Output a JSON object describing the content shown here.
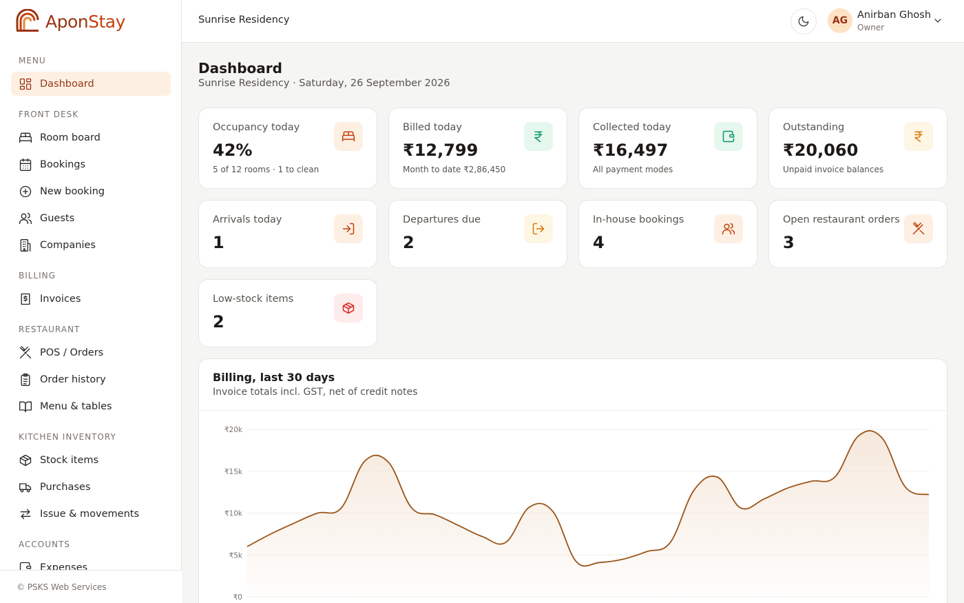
{
  "brand": {
    "part1": "Apon",
    "part2": "Stay"
  },
  "sidebar": {
    "sections": [
      {
        "label": "MENU",
        "items": [
          {
            "label": "Dashboard",
            "icon": "dashboard-icon",
            "active": true
          }
        ]
      },
      {
        "label": "FRONT DESK",
        "items": [
          {
            "label": "Room board",
            "icon": "bed-icon"
          },
          {
            "label": "Bookings",
            "icon": "calendar-icon"
          },
          {
            "label": "New booking",
            "icon": "plus-circle-icon"
          },
          {
            "label": "Guests",
            "icon": "users-icon"
          },
          {
            "label": "Companies",
            "icon": "building-icon"
          }
        ]
      },
      {
        "label": "BILLING",
        "items": [
          {
            "label": "Invoices",
            "icon": "invoice-icon"
          }
        ]
      },
      {
        "label": "RESTAURANT",
        "items": [
          {
            "label": "POS / Orders",
            "icon": "utensils-icon"
          },
          {
            "label": "Order history",
            "icon": "clipboard-icon"
          },
          {
            "label": "Menu & tables",
            "icon": "book-icon"
          }
        ]
      },
      {
        "label": "KITCHEN INVENTORY",
        "items": [
          {
            "label": "Stock items",
            "icon": "package-icon"
          },
          {
            "label": "Purchases",
            "icon": "truck-icon"
          },
          {
            "label": "Issue & movements",
            "icon": "arrows-icon"
          }
        ]
      },
      {
        "label": "ACCOUNTS",
        "items": [
          {
            "label": "Expenses",
            "icon": "wallet-icon"
          }
        ]
      }
    ],
    "footer": "© PSKS Web Services"
  },
  "header": {
    "property": "Sunrise Residency",
    "user": {
      "initials": "AG",
      "name": "Anirban Ghosh",
      "role": "Owner"
    }
  },
  "page": {
    "title": "Dashboard",
    "subtitle": "Sunrise Residency · Saturday, 26 September 2026"
  },
  "stats": [
    {
      "label": "Occupancy today",
      "value": "42%",
      "note": "5 of 12 rooms · 1 to clean",
      "icon": "bed-icon",
      "bg": "#fdf0e3",
      "fg": "#c2410c"
    },
    {
      "label": "Billed today",
      "value": "₹12,799",
      "note": "Month to date ₹2,86,450",
      "icon": "rupee-icon",
      "bg": "#e6f7ee",
      "fg": "#059669"
    },
    {
      "label": "Collected today",
      "value": "₹16,497",
      "note": "All payment modes",
      "icon": "wallet-icon",
      "bg": "#e6f7ee",
      "fg": "#059669"
    },
    {
      "label": "Outstanding",
      "value": "₹20,060",
      "note": "Unpaid invoice balances",
      "icon": "rupee-icon",
      "bg": "#fef6e4",
      "fg": "#d97706"
    },
    {
      "label": "Arrivals today",
      "value": "1",
      "note": "",
      "icon": "login-icon",
      "bg": "#fdf0e3",
      "fg": "#c2410c"
    },
    {
      "label": "Departures due",
      "value": "2",
      "note": "",
      "icon": "logout-icon",
      "bg": "#fef6e4",
      "fg": "#d97706"
    },
    {
      "label": "In-house bookings",
      "value": "4",
      "note": "",
      "icon": "users-icon",
      "bg": "#fdf0e3",
      "fg": "#c2410c"
    },
    {
      "label": "Open restaurant orders",
      "value": "3",
      "note": "",
      "icon": "utensils-icon",
      "bg": "#fdf0e3",
      "fg": "#c2410c"
    },
    {
      "label": "Low-stock items",
      "value": "2",
      "note": "",
      "icon": "package-icon",
      "bg": "#fdecec",
      "fg": "#dc2626"
    }
  ],
  "billing_chart": {
    "title": "Billing, last 30 days",
    "subtitle": "Invoice totals incl. GST, net of credit notes"
  },
  "chart_data": {
    "type": "area",
    "ylim": [
      0,
      20000
    ],
    "yticks": [
      "₹0",
      "₹5k",
      "₹10k",
      "₹15k",
      "₹20k"
    ],
    "ytick_values": [
      0,
      5000,
      10000,
      15000,
      20000
    ],
    "series": [
      {
        "values": [
          6000,
          7500,
          8800,
          10000,
          10600,
          16200,
          16100,
          10600,
          9800,
          8500,
          7200,
          6500,
          10700,
          10200,
          4200,
          4100,
          4500,
          5400,
          6500,
          12700,
          14300,
          10600,
          11700,
          13000,
          13800,
          14300,
          19200,
          19000,
          13100,
          12200
        ]
      }
    ],
    "colors": {
      "line": "#9a5418",
      "fill": "#f4e4d6",
      "grid": "#efedeb"
    }
  }
}
